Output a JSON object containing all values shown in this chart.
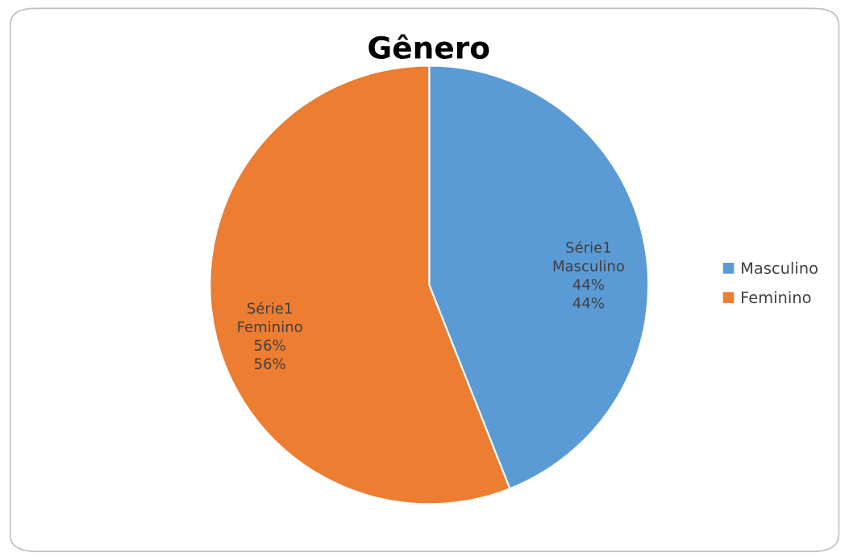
{
  "chart_data": {
    "type": "pie",
    "title": "Gênero",
    "categories": [
      "Masculino",
      "Feminino"
    ],
    "values": [
      44,
      56
    ],
    "colors": [
      "#5b9bd5",
      "#ed7d31"
    ],
    "value_labels": [
      "Série1\nMasculino\n44%\n44%",
      "Série1\nFeminino\n56%\n56%"
    ],
    "legend": "right"
  }
}
